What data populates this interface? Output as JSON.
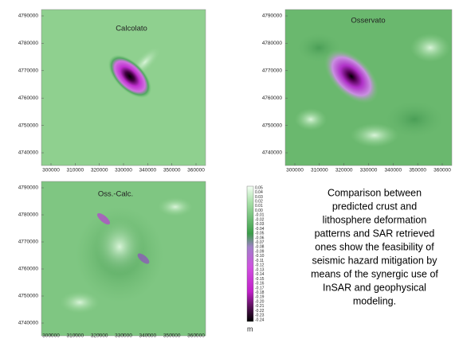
{
  "panels": [
    {
      "title": "Calcolato",
      "xticks": [
        "300000",
        "310000",
        "320000",
        "330000",
        "340000",
        "350000",
        "360000"
      ],
      "yticks": [
        "4790000",
        "4780000",
        "4770000",
        "4760000",
        "4750000",
        "4740000"
      ]
    },
    {
      "title": "Osservato",
      "xticks": [
        "300000",
        "310000",
        "320000",
        "330000",
        "340000",
        "350000",
        "360000"
      ],
      "yticks": [
        "4790000",
        "4780000",
        "4770000",
        "4760000",
        "4750000",
        "4740000"
      ]
    },
    {
      "title": "Oss.-Calc.",
      "xticks": [
        "300000",
        "310000",
        "320000",
        "330000",
        "340000",
        "350000",
        "360000"
      ],
      "yticks": [
        "4790000",
        "4780000",
        "4770000",
        "4760000",
        "4750000",
        "4740000"
      ]
    }
  ],
  "colorbar": {
    "labels": [
      "0.05",
      "0.04",
      "0.03",
      "0.02",
      "0.01",
      "0.00",
      "-0.01",
      "-0.02",
      "-0.03",
      "-0.04",
      "-0.05",
      "-0.06",
      "-0.07",
      "-0.08",
      "-0.09",
      "-0.10",
      "-0.11",
      "-0.12",
      "-0.13",
      "-0.14",
      "-0.15",
      "-0.16",
      "-0.17",
      "-0.18",
      "-0.19",
      "-0.20",
      "-0.21",
      "-0.22",
      "-0.23",
      "-0.24"
    ],
    "unit": "m"
  },
  "caption": [
    "Comparison between",
    "predicted crust and",
    "lithosphere deformation",
    "patterns and SAR retrieved",
    "ones show the feasibility of",
    "seismic hazard mitigation by",
    "means of the synergic use of",
    "InSAR and geophysical",
    "modeling."
  ]
}
